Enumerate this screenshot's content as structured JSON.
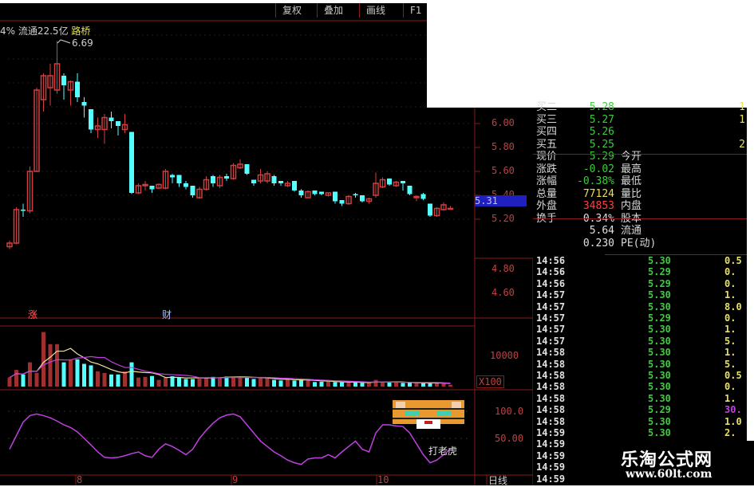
{
  "toolbar": {
    "buttons": [
      "复权",
      "叠加",
      "画线",
      "F1"
    ]
  },
  "header": {
    "info_prefix": "4% 流通22.5亿",
    "stock_name": "路桥",
    "high_marker": "6.69"
  },
  "price_axis": {
    "ticks": [
      "6.00",
      "5.80",
      "5.60",
      "5.40",
      "5.20",
      "4.80",
      "4.60"
    ],
    "current_marker": "5.31"
  },
  "volume_axis": {
    "tick": "10000",
    "unit": "X100"
  },
  "indicator_axis": {
    "ticks": [
      "100.0",
      "50.00"
    ],
    "label": "打老虎"
  },
  "signals": {
    "up_label": "涨",
    "cai_label": "财"
  },
  "date_axis": {
    "labels": [
      "8",
      "9",
      "10"
    ],
    "period": "日线"
  },
  "colors": {
    "up": "#d04040",
    "down": "#54ffff",
    "frame": "#8b1a1a",
    "indicator": "#c040e0",
    "ma5": "#e8e0a0",
    "ma10": "#c040e0"
  },
  "candles": [
    [
      4.97,
      5.02,
      4.95,
      5.0
    ],
    [
      5.0,
      5.3,
      4.99,
      5.28
    ],
    [
      5.28,
      5.33,
      5.22,
      5.27
    ],
    [
      5.27,
      5.64,
      5.25,
      5.6
    ],
    [
      5.6,
      6.3,
      5.6,
      6.28
    ],
    [
      6.2,
      6.42,
      6.1,
      6.4
    ],
    [
      6.3,
      6.5,
      6.15,
      6.4
    ],
    [
      6.28,
      6.69,
      6.25,
      6.5
    ],
    [
      6.4,
      6.42,
      6.2,
      6.32
    ],
    [
      6.28,
      6.36,
      6.15,
      6.35
    ],
    [
      6.35,
      6.42,
      6.18,
      6.22
    ],
    [
      6.18,
      6.22,
      6.05,
      6.15
    ],
    [
      6.12,
      6.12,
      5.92,
      5.95
    ],
    [
      5.95,
      6.05,
      5.88,
      5.98
    ],
    [
      5.95,
      6.08,
      5.83,
      6.05
    ],
    [
      6.05,
      6.1,
      5.96,
      6.02
    ],
    [
      6.02,
      6.02,
      5.9,
      5.98
    ],
    [
      5.95,
      6.08,
      5.92,
      5.99
    ],
    [
      5.93,
      5.93,
      5.41,
      5.42
    ],
    [
      5.42,
      5.5,
      5.41,
      5.48
    ],
    [
      5.48,
      5.52,
      5.44,
      5.49
    ],
    [
      5.48,
      5.48,
      5.42,
      5.45
    ],
    [
      5.46,
      5.5,
      5.45,
      5.49
    ],
    [
      5.46,
      5.62,
      5.45,
      5.6
    ],
    [
      5.57,
      5.58,
      5.5,
      5.55
    ],
    [
      5.57,
      5.57,
      5.47,
      5.5
    ],
    [
      5.5,
      5.52,
      5.45,
      5.47
    ],
    [
      5.48,
      5.48,
      5.38,
      5.4
    ],
    [
      5.38,
      5.47,
      5.37,
      5.45
    ],
    [
      5.45,
      5.56,
      5.44,
      5.53
    ],
    [
      5.56,
      5.57,
      5.47,
      5.5
    ],
    [
      5.48,
      5.57,
      5.46,
      5.55
    ],
    [
      5.56,
      5.58,
      5.52,
      5.54
    ],
    [
      5.54,
      5.67,
      5.53,
      5.65
    ],
    [
      5.63,
      5.7,
      5.62,
      5.66
    ],
    [
      5.66,
      5.66,
      5.57,
      5.58
    ],
    [
      5.53,
      5.53,
      5.48,
      5.5
    ],
    [
      5.52,
      5.62,
      5.5,
      5.57
    ],
    [
      5.52,
      5.6,
      5.5,
      5.58
    ],
    [
      5.56,
      5.57,
      5.48,
      5.5
    ],
    [
      5.52,
      5.52,
      5.48,
      5.5
    ],
    [
      5.48,
      5.52,
      5.47,
      5.5
    ],
    [
      5.52,
      5.52,
      5.43,
      5.44
    ],
    [
      5.44,
      5.45,
      5.38,
      5.4
    ],
    [
      5.38,
      5.44,
      5.38,
      5.43
    ],
    [
      5.44,
      5.44,
      5.4,
      5.41
    ],
    [
      5.43,
      5.43,
      5.4,
      5.41
    ],
    [
      5.4,
      5.42,
      5.39,
      5.42
    ],
    [
      5.43,
      5.43,
      5.33,
      5.35
    ],
    [
      5.36,
      5.36,
      5.31,
      5.33
    ],
    [
      5.33,
      5.4,
      5.32,
      5.39
    ],
    [
      5.41,
      5.42,
      5.38,
      5.4
    ],
    [
      5.4,
      5.4,
      5.34,
      5.35
    ],
    [
      5.35,
      5.38,
      5.33,
      5.37
    ],
    [
      5.4,
      5.59,
      5.38,
      5.5
    ],
    [
      5.47,
      5.55,
      5.46,
      5.53
    ],
    [
      5.54,
      5.54,
      5.48,
      5.49
    ],
    [
      5.48,
      5.52,
      5.47,
      5.51
    ],
    [
      5.52,
      5.52,
      5.44,
      5.5
    ],
    [
      5.48,
      5.48,
      5.4,
      5.41
    ],
    [
      5.38,
      5.4,
      5.35,
      5.39
    ],
    [
      5.41,
      5.42,
      5.36,
      5.37
    ],
    [
      5.33,
      5.33,
      5.22,
      5.23
    ],
    [
      5.23,
      5.3,
      5.22,
      5.29
    ],
    [
      5.28,
      5.34,
      5.27,
      5.32
    ],
    [
      5.29,
      5.31,
      5.28,
      5.29
    ]
  ],
  "volumes": [
    3000,
    5500,
    4000,
    8000,
    4500,
    18000,
    14000,
    14000,
    8000,
    9000,
    9000,
    7500,
    7000,
    5000,
    4500,
    4000,
    4000,
    5000,
    8000,
    3000,
    3200,
    3500,
    2200,
    3000,
    3400,
    3000,
    2500,
    2500,
    3000,
    3000,
    3200,
    3000,
    3300,
    3300,
    3200,
    3000,
    2500,
    2800,
    2700,
    2200,
    2000,
    2500,
    2000,
    2300,
    2000,
    1500,
    1600,
    1700,
    1500,
    1400,
    1400,
    1300,
    1200,
    1300,
    2200,
    1500,
    1400,
    1300,
    1200,
    1300,
    1200,
    1100,
    1100,
    1400,
    1000,
    600
  ],
  "indicator": [
    30,
    55,
    80,
    92,
    95,
    92,
    88,
    82,
    75,
    70,
    62,
    50,
    38,
    25,
    15,
    14,
    15,
    18,
    22,
    25,
    18,
    15,
    30,
    40,
    35,
    28,
    20,
    30,
    50,
    65,
    78,
    88,
    93,
    95,
    90,
    75,
    60,
    45,
    35,
    25,
    18,
    10,
    5,
    2,
    12,
    14,
    14,
    20,
    14,
    25,
    35,
    45,
    30,
    25,
    60,
    75,
    75,
    73,
    72,
    60,
    40,
    20,
    5,
    10,
    20,
    30
  ],
  "quote": {
    "rows": [
      {
        "label": "买二",
        "value": "5.28",
        "extra_label": "",
        "extra": "1",
        "color": "green"
      },
      {
        "label": "买三",
        "value": "5.27",
        "extra_label": "",
        "extra": "1",
        "color": "green"
      },
      {
        "label": "买四",
        "value": "5.26",
        "extra_label": "",
        "extra": "",
        "color": "green"
      },
      {
        "label": "买五",
        "value": "5.25",
        "extra_label": "",
        "extra": "2",
        "color": "green"
      },
      {
        "label": "现价",
        "value": "5.29",
        "extra_label": "今开",
        "extra": "",
        "color": "green"
      },
      {
        "label": "涨跌",
        "value": "-0.02",
        "extra_label": "最高",
        "extra": "",
        "color": "green"
      },
      {
        "label": "涨幅",
        "value": "-0.38%",
        "extra_label": "最低",
        "extra": "",
        "color": "green"
      },
      {
        "label": "总量",
        "value": "77124",
        "extra_label": "量比",
        "extra": "",
        "color": "yellow"
      },
      {
        "label": "外盘",
        "value": "34853",
        "extra_label": "内盘",
        "extra": "",
        "color": "red"
      },
      {
        "label": "换手",
        "value": "0.34%",
        "extra_label": "股本",
        "extra": "",
        "color": "white"
      },
      {
        "label": "",
        "value": "5.64",
        "extra_label": "流通",
        "extra": "",
        "color": "white"
      },
      {
        "label": "",
        "value": "0.230",
        "extra_label": "PE(动)",
        "extra": "",
        "color": "white"
      }
    ]
  },
  "ticks": [
    {
      "time": "14:56",
      "price": "5.30",
      "vol": "0.5",
      "vc": "yellow"
    },
    {
      "time": "14:56",
      "price": "5.29",
      "vol": "0.",
      "vc": "yellow"
    },
    {
      "time": "14:56",
      "price": "5.29",
      "vol": "0.",
      "vc": "yellow"
    },
    {
      "time": "14:57",
      "price": "5.30",
      "vol": "1.",
      "vc": "yellow"
    },
    {
      "time": "14:57",
      "price": "5.30",
      "vol": "8.0",
      "vc": "yellow"
    },
    {
      "time": "14:57",
      "price": "5.29",
      "vol": "0.",
      "vc": "yellow"
    },
    {
      "time": "14:57",
      "price": "5.30",
      "vol": "1.",
      "vc": "yellow"
    },
    {
      "time": "14:57",
      "price": "5.30",
      "vol": "5.",
      "vc": "yellow"
    },
    {
      "time": "14:58",
      "price": "5.30",
      "vol": "1.",
      "vc": "yellow"
    },
    {
      "time": "14:58",
      "price": "5.30",
      "vol": "5.",
      "vc": "yellow"
    },
    {
      "time": "14:58",
      "price": "5.30",
      "vol": "0.5",
      "vc": "yellow"
    },
    {
      "time": "14:58",
      "price": "5.30",
      "vol": "0.",
      "vc": "yellow"
    },
    {
      "time": "14:58",
      "price": "5.30",
      "vol": "1.",
      "vc": "yellow"
    },
    {
      "time": "14:58",
      "price": "5.29",
      "vol": "30.",
      "vc": "purple"
    },
    {
      "time": "14:58",
      "price": "5.30",
      "vol": "1.0",
      "vc": "yellow"
    },
    {
      "time": "14:59",
      "price": "5.30",
      "vol": "2.",
      "vc": "yellow"
    },
    {
      "time": "14:59",
      "price": "",
      "vol": "",
      "vc": "yellow"
    },
    {
      "time": "14:59",
      "price": "",
      "vol": "",
      "vc": "yellow"
    },
    {
      "time": "14:59",
      "price": "",
      "vol": "",
      "vc": "yellow"
    },
    {
      "time": "14:59",
      "price": "",
      "vol": "",
      "vc": "yellow"
    }
  ],
  "watermark": {
    "title": "乐淘公式网",
    "url": "www.60lt.com"
  }
}
